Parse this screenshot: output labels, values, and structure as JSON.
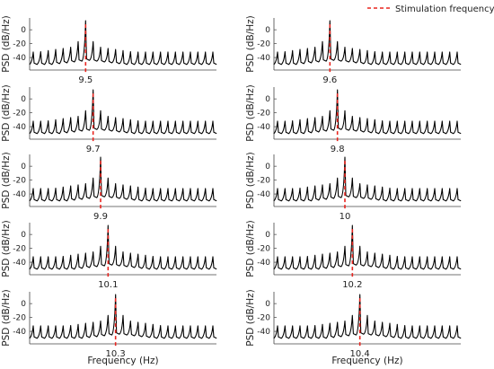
{
  "chart_data": {
    "type": "line",
    "ylabel": "PSD (dB/Hz)",
    "xlabel": "Frequency (Hz)",
    "yticks": [
      0,
      -20,
      -40
    ],
    "ylim": [
      -58,
      17
    ],
    "legend": {
      "label": "Stimulation frequency",
      "position": "top-right",
      "color": "#e8251f",
      "style": "dashed"
    },
    "line_color": "#000000",
    "harmonic_count": 25,
    "panels": [
      {
        "stimulation_frequency": "9.5",
        "peak_index": 7
      },
      {
        "stimulation_frequency": "9.6",
        "peak_index": 7
      },
      {
        "stimulation_frequency": "9.7",
        "peak_index": 8
      },
      {
        "stimulation_frequency": "9.8",
        "peak_index": 8
      },
      {
        "stimulation_frequency": "9.9",
        "peak_index": 9
      },
      {
        "stimulation_frequency": "10",
        "peak_index": 9
      },
      {
        "stimulation_frequency": "10.1",
        "peak_index": 10
      },
      {
        "stimulation_frequency": "10.2",
        "peak_index": 10
      },
      {
        "stimulation_frequency": "10.3",
        "peak_index": 11
      },
      {
        "stimulation_frequency": "10.4",
        "peak_index": 11
      }
    ]
  }
}
